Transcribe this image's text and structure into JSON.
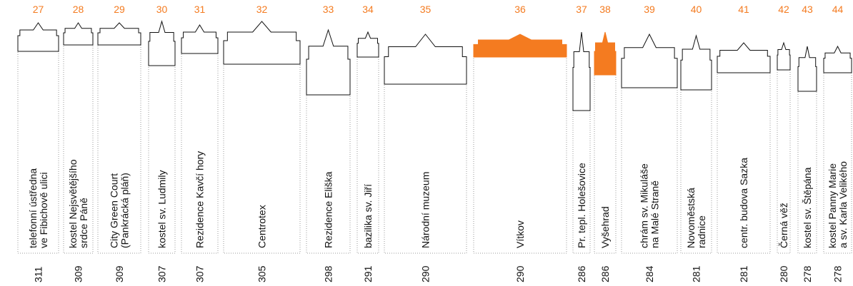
{
  "items": [
    {
      "rank": "27",
      "name": [
        "telefonní ústředna",
        "ve Fibichově ulici"
      ],
      "height": "311"
    },
    {
      "rank": "28",
      "name": [
        "kostel Nejsvětějšího",
        "srdce Páně"
      ],
      "height": "309"
    },
    {
      "rank": "29",
      "name": [
        "City Green Court",
        "(Pankrácká pláň)"
      ],
      "height": "309"
    },
    {
      "rank": "30",
      "name": [
        "kostel sv. Ludmily"
      ],
      "height": "307"
    },
    {
      "rank": "31",
      "name": [
        "Rezidence Kavčí hory"
      ],
      "height": "307"
    },
    {
      "rank": "32",
      "name": [
        "Centrotex"
      ],
      "height": "305"
    },
    {
      "rank": "33",
      "name": [
        "Rezidence Eliška"
      ],
      "height": "298"
    },
    {
      "rank": "34",
      "name": [
        "bazilika sv. Jiří"
      ],
      "height": "291"
    },
    {
      "rank": "35",
      "name": [
        "Národní muzeum"
      ],
      "height": "290"
    },
    {
      "rank": "36",
      "name": [
        "Vítkov"
      ],
      "height": "290"
    },
    {
      "rank": "37",
      "name": [
        "Pr. tepl. Holešovice"
      ],
      "height": "286"
    },
    {
      "rank": "38",
      "name": [
        "Vyšehrad"
      ],
      "height": "286"
    },
    {
      "rank": "39",
      "name": [
        "chrám sv. Mikuláše",
        "na Malé Straně"
      ],
      "height": "284"
    },
    {
      "rank": "40",
      "name": [
        "Novoměstská",
        "radnice"
      ],
      "height": "281"
    },
    {
      "rank": "41",
      "name": [
        "centr. budova Sazka"
      ],
      "height": "281"
    },
    {
      "rank": "42",
      "name": [
        "Černá věž"
      ],
      "height": "280"
    },
    {
      "rank": "43",
      "name": [
        "kostel sv. Štěpána"
      ],
      "height": "278"
    },
    {
      "rank": "44",
      "name": [
        "kostel Panny Marie",
        "a sv. Karla Velikého"
      ],
      "height": "278"
    }
  ]
}
